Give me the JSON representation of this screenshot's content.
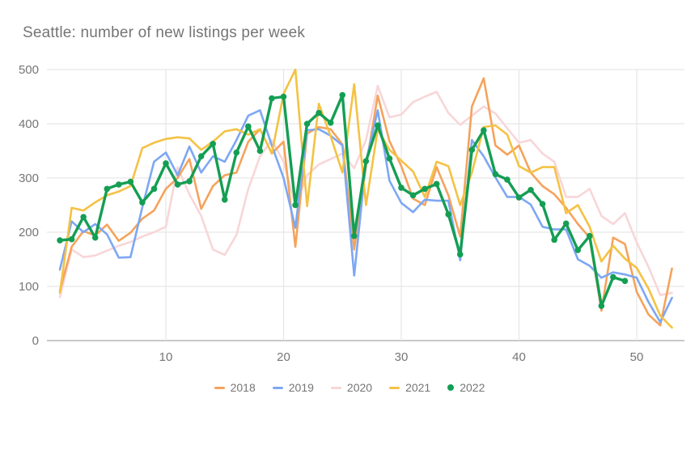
{
  "title": "Seattle: number of new listings per week",
  "colors": {
    "title_text": "#757575",
    "axis_text": "#757575",
    "gridline": "#e6e6e6",
    "baseline": "#b5b5b5",
    "series_2018": "#f5a35c",
    "series_2019": "#7da7f4",
    "series_2020": "#f8d6d8",
    "series_2021": "#f4c244",
    "series_2022": "#149e53"
  },
  "chart_data": {
    "type": "line",
    "title": "Seattle: number of new listings per week",
    "xlabel": "",
    "ylabel": "",
    "xlim": [
      1,
      53
    ],
    "ylim": [
      0,
      500
    ],
    "x_ticks": [
      10,
      20,
      30,
      40,
      50
    ],
    "y_ticks": [
      0,
      100,
      200,
      300,
      400,
      500
    ],
    "grid": true,
    "legend_position": "bottom",
    "x": [
      1,
      2,
      3,
      4,
      5,
      6,
      7,
      8,
      9,
      10,
      11,
      12,
      13,
      14,
      15,
      16,
      17,
      18,
      19,
      20,
      21,
      22,
      23,
      24,
      25,
      26,
      27,
      28,
      29,
      30,
      31,
      32,
      33,
      34,
      35,
      36,
      37,
      38,
      39,
      40,
      41,
      42,
      43,
      44,
      45,
      46,
      47,
      48,
      49,
      50,
      51,
      52,
      53
    ],
    "series": [
      {
        "name": "2018",
        "color": "#f5a35c",
        "marker": "none",
        "values": [
          92,
          173,
          202,
          194,
          214,
          184,
          199,
          225,
          240,
          280,
          300,
          335,
          243,
          285,
          305,
          310,
          367,
          390,
          345,
          367,
          173,
          382,
          394,
          390,
          362,
          168,
          322,
          452,
          368,
          322,
          262,
          250,
          320,
          268,
          192,
          432,
          484,
          360,
          343,
          360,
          310,
          285,
          270,
          245,
          215,
          190,
          55,
          190,
          178,
          90,
          48,
          28,
          133
        ]
      },
      {
        "name": "2019",
        "color": "#7da7f4",
        "marker": "none",
        "values": [
          131,
          220,
          200,
          215,
          196,
          153,
          154,
          246,
          330,
          347,
          305,
          358,
          310,
          340,
          330,
          370,
          415,
          425,
          360,
          300,
          208,
          388,
          390,
          378,
          360,
          120,
          330,
          425,
          295,
          254,
          237,
          260,
          258,
          258,
          148,
          370,
          340,
          301,
          265,
          265,
          251,
          210,
          205,
          205,
          150,
          138,
          116,
          126,
          122,
          116,
          71,
          34,
          79
        ]
      },
      {
        "name": "2020",
        "color": "#f8d6d8",
        "marker": "none",
        "values": [
          80,
          168,
          154,
          157,
          166,
          175,
          182,
          192,
          200,
          210,
          320,
          270,
          230,
          168,
          158,
          195,
          280,
          340,
          370,
          330,
          250,
          305,
          325,
          335,
          345,
          318,
          370,
          470,
          412,
          417,
          440,
          450,
          459,
          420,
          398,
          415,
          432,
          419,
          392,
          365,
          370,
          345,
          330,
          265,
          265,
          280,
          230,
          215,
          235,
          181,
          136,
          84,
          88
        ]
      },
      {
        "name": "2021",
        "color": "#f4c244",
        "marker": "none",
        "values": [
          88,
          245,
          240,
          255,
          268,
          275,
          285,
          355,
          365,
          372,
          375,
          373,
          352,
          367,
          386,
          390,
          380,
          390,
          345,
          455,
          500,
          248,
          437,
          377,
          310,
          473,
          250,
          390,
          352,
          332,
          312,
          265,
          330,
          322,
          250,
          310,
          394,
          397,
          380,
          322,
          310,
          320,
          320,
          235,
          250,
          210,
          146,
          175,
          151,
          134,
          96,
          46,
          24
        ]
      },
      {
        "name": "2022",
        "color": "#149e53",
        "marker": "circle",
        "values": [
          185,
          187,
          228,
          190,
          280,
          288,
          293,
          255,
          280,
          327,
          288,
          294,
          340,
          363,
          260,
          347,
          395,
          350,
          447,
          450,
          250,
          400,
          420,
          402,
          453,
          193,
          331,
          397,
          336,
          282,
          268,
          280,
          289,
          233,
          159,
          352,
          388,
          307,
          297,
          264,
          278,
          252,
          186,
          216,
          167,
          193,
          64,
          117,
          110
        ]
      }
    ]
  }
}
